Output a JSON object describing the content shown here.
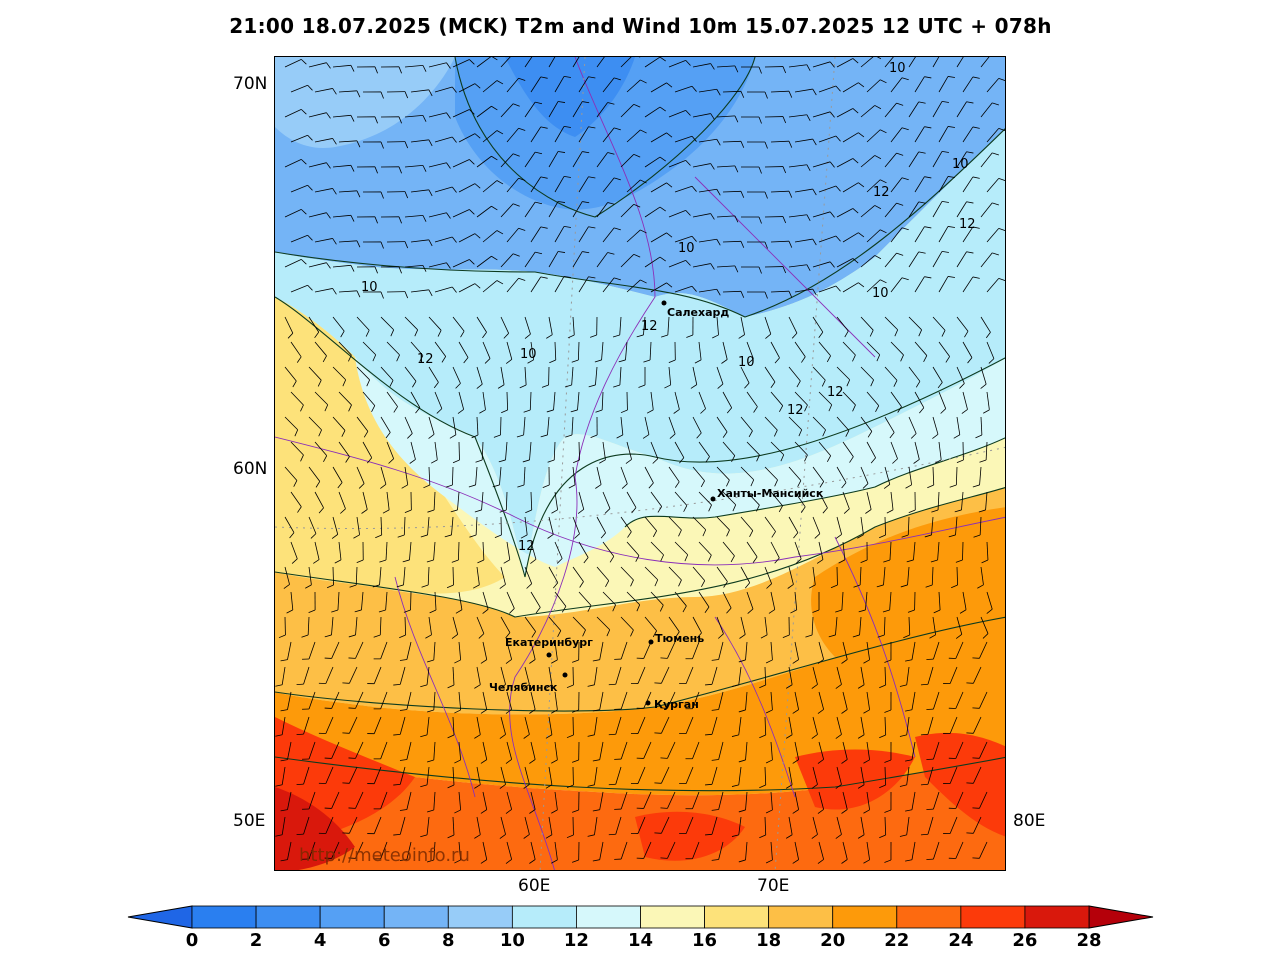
{
  "title": "21:00 18.07.2025 (MCK) T2m and Wind 10m 15.07.2025 12 UTC + 078h",
  "watermark": "http://meteoinfo.ru",
  "axes": {
    "lat_labels": [
      "70N",
      "60N"
    ],
    "lon_labels_left": [
      "50E"
    ],
    "lon_labels_right": [
      "80E"
    ],
    "lon_labels_bottom": [
      "60E",
      "70E"
    ]
  },
  "cities": [
    {
      "name": "Салехард"
    },
    {
      "name": "Ханты-Мансийск"
    },
    {
      "name": "Екатеринбург"
    },
    {
      "name": "Тюмень"
    },
    {
      "name": "Челябинск"
    },
    {
      "name": "Курган"
    }
  ],
  "contour_labels": [
    "10",
    "10",
    "10",
    "12",
    "12",
    "10",
    "10",
    "12",
    "12",
    "10",
    "10",
    "12",
    "10",
    "12",
    "12",
    "12",
    "12"
  ],
  "colorbar": {
    "ticks": [
      "0",
      "2",
      "4",
      "6",
      "8",
      "10",
      "12",
      "14",
      "16",
      "18",
      "20",
      "22",
      "24",
      "26",
      "28"
    ],
    "colors": [
      "#2a7ff0",
      "#3d8ef2",
      "#55a0f4",
      "#74b4f6",
      "#97ccf8",
      "#b6ecfa",
      "#d6f8fb",
      "#fbf7b7",
      "#fde27a",
      "#fdbf46",
      "#fd9a0a",
      "#fd6a10",
      "#fc3a0a",
      "#d9180c"
    ],
    "under_color": "#1f66e6",
    "over_color": "#b5000a"
  }
}
